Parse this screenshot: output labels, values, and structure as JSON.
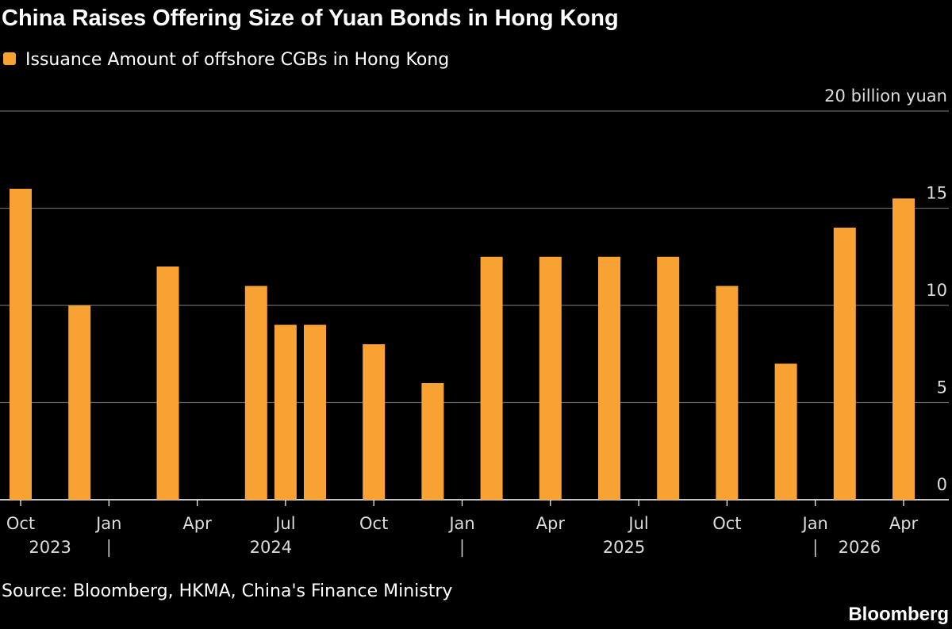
{
  "chart_data": {
    "type": "bar",
    "title": "China Raises Offering Size of Yuan Bonds in Hong Kong",
    "series": [
      {
        "name": "Issuance Amount of offshore CGBs in Hong Kong",
        "color": "#f7a233",
        "values": [
          16,
          10,
          12,
          11,
          9,
          9,
          8,
          6,
          12.5,
          12.5,
          12.5,
          12.5,
          11,
          7,
          14,
          15.5
        ]
      }
    ],
    "x": [
      "2023-10",
      "2023-12",
      "2024-03",
      "2024-06",
      "2024-07",
      "2024-08",
      "2024-10",
      "2024-12",
      "2025-02",
      "2025-04",
      "2025-06",
      "2025-08",
      "2025-10",
      "2025-12",
      "2026-02",
      "2026-04"
    ],
    "xticks": [
      {
        "value": "2023-10",
        "label": "Oct"
      },
      {
        "value": "2024-01",
        "label": "Jan"
      },
      {
        "value": "2024-04",
        "label": "Apr"
      },
      {
        "value": "2024-07",
        "label": "Jul"
      },
      {
        "value": "2024-10",
        "label": "Oct"
      },
      {
        "value": "2025-01",
        "label": "Jan"
      },
      {
        "value": "2025-04",
        "label": "Apr"
      },
      {
        "value": "2025-07",
        "label": "Jul"
      },
      {
        "value": "2025-10",
        "label": "Oct"
      },
      {
        "value": "2026-01",
        "label": "Jan"
      },
      {
        "value": "2026-04",
        "label": "Apr"
      }
    ],
    "years": [
      "2023",
      "2024",
      "2025",
      "2026"
    ],
    "ylim": [
      0,
      20
    ],
    "yticks": [
      0,
      5,
      10,
      15,
      {
        "value": 20,
        "label": "20 billion yuan"
      }
    ],
    "grid": true,
    "source": "Source: Bloomberg, HKMA, China's Finance Ministry",
    "brand": "Bloomberg"
  }
}
